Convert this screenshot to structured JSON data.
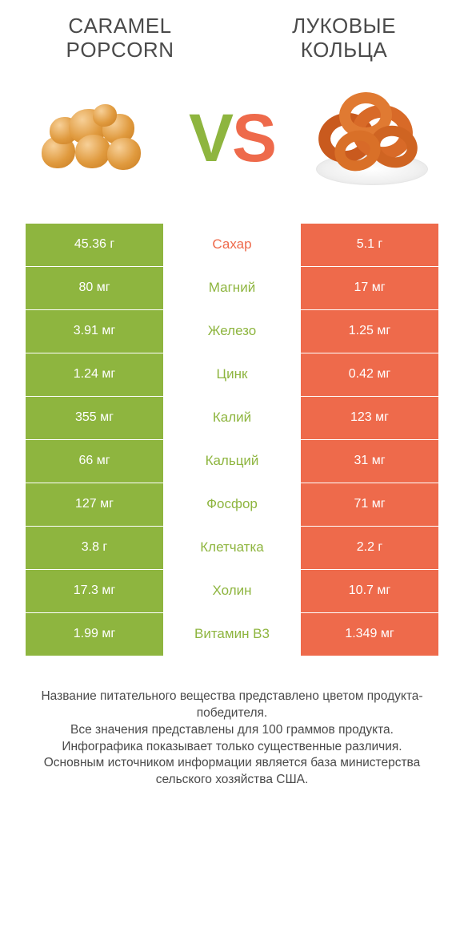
{
  "colors": {
    "green": "#8eb53f",
    "orange": "#ee6a4b",
    "text": "#4a4a4a",
    "white": "#ffffff"
  },
  "header": {
    "left_title": "CARAMEL POPCORN",
    "right_title": "ЛУКОВЫЕ КОЛЬЦА",
    "vs": "VS"
  },
  "table": {
    "rows": [
      {
        "nutrient": "Сахар",
        "left": "45.36 г",
        "right": "5.1 г",
        "winner": "orange"
      },
      {
        "nutrient": "Магний",
        "left": "80 мг",
        "right": "17 мг",
        "winner": "green"
      },
      {
        "nutrient": "Железо",
        "left": "3.91 мг",
        "right": "1.25 мг",
        "winner": "green"
      },
      {
        "nutrient": "Цинк",
        "left": "1.24 мг",
        "right": "0.42 мг",
        "winner": "green"
      },
      {
        "nutrient": "Калий",
        "left": "355 мг",
        "right": "123 мг",
        "winner": "green"
      },
      {
        "nutrient": "Кальций",
        "left": "66 мг",
        "right": "31 мг",
        "winner": "green"
      },
      {
        "nutrient": "Фосфор",
        "left": "127 мг",
        "right": "71 мг",
        "winner": "green"
      },
      {
        "nutrient": "Клетчатка",
        "left": "3.8 г",
        "right": "2.2 г",
        "winner": "green"
      },
      {
        "nutrient": "Холин",
        "left": "17.3 мг",
        "right": "10.7 мг",
        "winner": "green"
      },
      {
        "nutrient": "Витамин B3",
        "left": "1.99 мг",
        "right": "1.349 мг",
        "winner": "green"
      }
    ]
  },
  "footer": {
    "line1": "Название питательного вещества представлено цветом продукта-победителя.",
    "line2": "Все значения представлены для 100 граммов продукта.",
    "line3": "Инфографика показывает только существенные различия.",
    "line4": "Основным источником информации является база министерства сельского хозяйства США."
  }
}
